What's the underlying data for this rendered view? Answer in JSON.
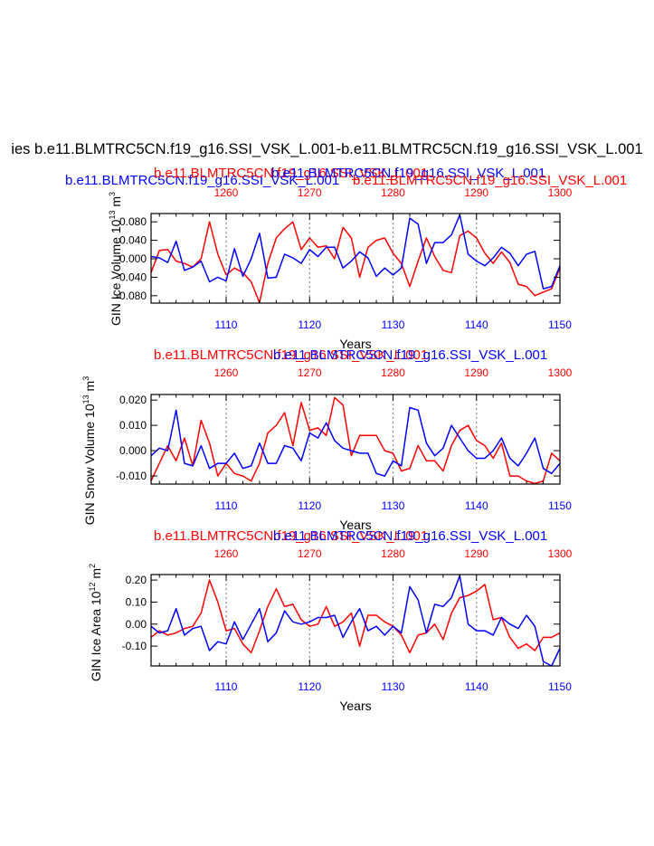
{
  "figure": {
    "main_title": "ies b.e11.BLMTRC5CN.f19_g16.SSI_VSK_L.001-b.e11.BLMTRC5CN.f19_g16.SSI_VSK_L.001"
  },
  "colors": {
    "series_a": "#0000ff",
    "series_b": "#ff0000",
    "axis": "#000000",
    "refline": "#888888"
  },
  "chart_data": [
    {
      "type": "line",
      "title": "GIN Ice Volume",
      "ylabel": "GIN Ice Volume 10 m",
      "ylabel_exp": "13",
      "ylabel_unit_exp": "3",
      "xlabel": "Years",
      "bottom_axis": {
        "range": [
          1101,
          1150
        ],
        "ticks": [
          1110,
          1120,
          1130,
          1140,
          1150
        ],
        "tick_labels": [
          "1110",
          "1120",
          "1130",
          "1140",
          "1150"
        ]
      },
      "top_axis": {
        "range": [
          1251,
          1300
        ],
        "ticks": [
          1260,
          1270,
          1280,
          1290,
          1300
        ],
        "tick_labels": [
          "1260",
          "1270",
          "1280",
          "1290",
          "1300"
        ]
      },
      "ylim": [
        -0.096,
        0.098
      ],
      "yticks": [
        -0.08,
        -0.04,
        0.0,
        0.04,
        0.08
      ],
      "ytick_labels": [
        "-0.080",
        "-0.040",
        "0.000",
        "0.040",
        "0.080"
      ],
      "series": [
        {
          "name": "b.e11.BLMTRC5CN.f19_g16.SSI_VSK_L.001",
          "axis": "bottom",
          "color": "#0000ff",
          "values": [
            0.005,
            0.002,
            -0.008,
            0.038,
            -0.025,
            -0.018,
            -0.005,
            -0.05,
            -0.04,
            -0.048,
            0.022,
            -0.038,
            0.0,
            0.055,
            -0.042,
            -0.04,
            0.01,
            0.002,
            -0.01,
            0.02,
            0.005,
            0.025,
            0.025,
            -0.02,
            -0.005,
            0.015,
            0.002,
            -0.038,
            -0.02,
            -0.035,
            -0.02,
            0.088,
            0.075,
            -0.01,
            0.035,
            0.035,
            0.052,
            0.095,
            0.01,
            -0.005,
            -0.015,
            0.002,
            0.025,
            0.012,
            -0.015,
            0.01,
            0.016,
            -0.065,
            -0.06,
            -0.015
          ]
        },
        {
          "name": "b.e11.BLMTRC5CN.f19_g16.SSI_VSK_L.001",
          "axis": "top",
          "color": "#ff0000",
          "values": [
            -0.03,
            0.018,
            0.02,
            -0.005,
            -0.01,
            -0.018,
            0.0,
            0.08,
            0.01,
            -0.035,
            -0.02,
            -0.03,
            -0.05,
            -0.095,
            -0.01,
            0.045,
            0.065,
            0.08,
            0.02,
            0.045,
            0.025,
            0.028,
            0.0,
            0.068,
            0.045,
            -0.04,
            0.025,
            0.04,
            0.045,
            0.012,
            -0.01,
            -0.06,
            -0.005,
            0.045,
            0.005,
            -0.025,
            -0.03,
            0.05,
            0.06,
            0.045,
            0.012,
            -0.01,
            0.015,
            -0.008,
            -0.055,
            -0.06,
            -0.08,
            -0.072,
            -0.065,
            -0.02
          ]
        }
      ]
    },
    {
      "type": "line",
      "title": "GIN Snow Volume",
      "ylabel": "GIN Snow Volume 10 m",
      "ylabel_exp": "13",
      "ylabel_unit_exp": "3",
      "xlabel": "Years",
      "bottom_axis": {
        "range": [
          1101,
          1150
        ],
        "ticks": [
          1110,
          1120,
          1130,
          1140,
          1150
        ],
        "tick_labels": [
          "1110",
          "1120",
          "1130",
          "1140",
          "1150"
        ]
      },
      "top_axis": {
        "range": [
          1251,
          1300
        ],
        "ticks": [
          1260,
          1270,
          1280,
          1290,
          1300
        ],
        "tick_labels": [
          "1260",
          "1270",
          "1280",
          "1290",
          "1300"
        ]
      },
      "ylim": [
        -0.0132,
        0.0222
      ],
      "yticks": [
        -0.01,
        0.0,
        0.01,
        0.02
      ],
      "ytick_labels": [
        "-0.010",
        "0.000",
        "0.010",
        "0.020"
      ],
      "series": [
        {
          "name": "b.e11.BLMTRC5CN.f19_g16.SSI_VSK_L.001",
          "axis": "bottom",
          "color": "#0000ff",
          "values": [
            -0.002,
            0.001,
            0.0,
            0.016,
            -0.005,
            -0.006,
            0.002,
            -0.007,
            -0.005,
            -0.005,
            -0.001,
            -0.007,
            -0.006,
            0.003,
            -0.005,
            -0.005,
            0.002,
            0.001,
            -0.004,
            0.007,
            0.005,
            0.011,
            0.004,
            0.001,
            0.0,
            -0.001,
            -0.001,
            -0.009,
            -0.01,
            -0.004,
            -0.006,
            0.017,
            0.016,
            0.003,
            -0.002,
            0.001,
            0.01,
            0.005,
            0.0,
            -0.003,
            -0.003,
            0.0,
            0.005,
            -0.003,
            -0.006,
            -0.001,
            0.005,
            -0.007,
            -0.009,
            -0.005
          ]
        },
        {
          "name": "b.e11.BLMTRC5CN.f19_g16.SSI_VSK_L.001",
          "axis": "top",
          "color": "#ff0000",
          "values": [
            -0.012,
            -0.005,
            0.002,
            -0.004,
            0.005,
            -0.006,
            0.012,
            0.003,
            -0.01,
            -0.005,
            -0.009,
            -0.01,
            -0.012,
            -0.005,
            0.007,
            0.01,
            0.015,
            0.002,
            0.019,
            0.008,
            0.009,
            0.006,
            0.021,
            0.018,
            -0.002,
            0.006,
            0.006,
            0.006,
            0.0,
            -0.001,
            -0.008,
            -0.007,
            0.002,
            -0.004,
            -0.004,
            -0.008,
            0.002,
            0.008,
            0.01,
            0.004,
            0.002,
            -0.003,
            0.003,
            -0.01,
            -0.01,
            -0.012,
            -0.013,
            -0.012,
            -0.001,
            -0.004
          ]
        }
      ]
    },
    {
      "type": "line",
      "title": "GIN Ice Area",
      "ylabel": "GIN Ice Area 10 m",
      "ylabel_exp": "12",
      "ylabel_unit_exp": "2",
      "xlabel": "Years",
      "bottom_axis": {
        "range": [
          1101,
          1150
        ],
        "ticks": [
          1110,
          1120,
          1130,
          1140,
          1150
        ],
        "tick_labels": [
          "1110",
          "1120",
          "1130",
          "1140",
          "1150"
        ]
      },
      "top_axis": {
        "range": [
          1251,
          1300
        ],
        "ticks": [
          1260,
          1270,
          1280,
          1290,
          1300
        ],
        "tick_labels": [
          "1260",
          "1270",
          "1280",
          "1290",
          "1300"
        ]
      },
      "ylim": [
        -0.19,
        0.225
      ],
      "yticks": [
        -0.1,
        0.0,
        0.1,
        0.2
      ],
      "ytick_labels": [
        "-0.10",
        "0.00",
        "0.10",
        "0.20"
      ],
      "series": [
        {
          "name": "b.e11.BLMTRC5CN.f19_g16.SSI_VSK_L.001",
          "axis": "bottom",
          "color": "#0000ff",
          "values": [
            -0.01,
            -0.04,
            -0.03,
            0.07,
            -0.05,
            -0.02,
            -0.01,
            -0.12,
            -0.08,
            -0.09,
            0.01,
            -0.07,
            0.0,
            0.07,
            -0.08,
            -0.04,
            0.06,
            0.01,
            0.0,
            0.01,
            0.03,
            0.03,
            0.04,
            -0.06,
            0.01,
            0.07,
            -0.03,
            -0.01,
            -0.05,
            -0.01,
            -0.04,
            0.17,
            0.11,
            -0.04,
            0.09,
            0.08,
            0.12,
            0.22,
            0.0,
            -0.03,
            -0.03,
            -0.05,
            0.03,
            0.0,
            -0.02,
            0.04,
            -0.01,
            -0.17,
            -0.19,
            -0.11
          ]
        },
        {
          "name": "b.e11.BLMTRC5CN.f19_g16.SSI_VSK_L.001",
          "axis": "top",
          "color": "#ff0000",
          "values": [
            -0.06,
            -0.03,
            -0.05,
            -0.04,
            -0.02,
            -0.01,
            0.05,
            0.2,
            0.1,
            -0.03,
            -0.02,
            -0.09,
            -0.13,
            -0.03,
            0.08,
            0.16,
            0.08,
            0.09,
            0.02,
            -0.01,
            0.0,
            0.08,
            -0.01,
            0.01,
            0.05,
            -0.1,
            0.04,
            0.04,
            0.01,
            -0.01,
            -0.05,
            -0.13,
            -0.05,
            -0.04,
            0.0,
            -0.07,
            0.05,
            0.12,
            0.13,
            0.15,
            0.18,
            0.02,
            0.03,
            -0.06,
            -0.11,
            -0.09,
            -0.12,
            -0.06,
            -0.06,
            -0.04
          ]
        }
      ]
    }
  ]
}
